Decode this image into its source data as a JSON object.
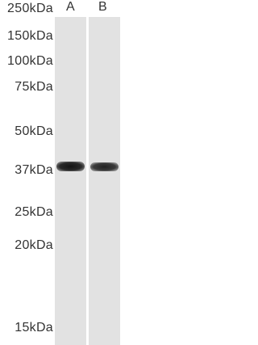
{
  "lanes": [
    "A",
    "B"
  ],
  "markers": [
    "250kDa",
    "150kDa",
    "100kDa",
    "75kDa",
    "50kDa",
    "37kDa",
    "25kDa",
    "20kDa",
    "15kDa"
  ]
}
